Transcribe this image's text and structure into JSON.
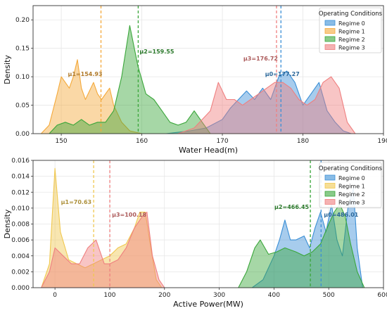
{
  "chart_data": [
    {
      "type": "area",
      "subtype": "kde-density",
      "xlabel": "Water Head(m)",
      "ylabel": "Density",
      "xlim": [
        146.5,
        190
      ],
      "ylim": [
        0,
        0.225
      ],
      "xticks": [
        150,
        160,
        170,
        180,
        190
      ],
      "yticks": [
        0.0,
        0.05,
        0.1,
        0.15,
        0.2
      ],
      "ytick_labels": [
        "0.00",
        "0.05",
        "0.10",
        "0.15",
        "0.20"
      ],
      "grid": true,
      "legend": {
        "title": "Operating Conditions",
        "position": "top-right"
      },
      "series": [
        {
          "name": "Regime 0",
          "color": "#3b8fd6",
          "mean": 177.27,
          "mean_label": "μ0=177.27",
          "x": [
            163,
            166,
            168,
            170,
            171,
            172,
            173,
            174,
            175,
            176,
            177,
            178,
            179,
            180,
            181,
            182,
            183,
            184,
            185,
            186
          ],
          "y": [
            0,
            0.005,
            0.01,
            0.025,
            0.045,
            0.06,
            0.075,
            0.06,
            0.08,
            0.06,
            0.1,
            0.11,
            0.09,
            0.05,
            0.07,
            0.09,
            0.04,
            0.02,
            0.005,
            0
          ]
        },
        {
          "name": "Regime 1",
          "color": "#f4a93a",
          "mean": 154.93,
          "mean_label": "μ1=154.93",
          "x": [
            147.5,
            148.5,
            149.5,
            150,
            151,
            151.5,
            152,
            152.5,
            153,
            154,
            154.5,
            155,
            156,
            156.5,
            157.5,
            158.5,
            160
          ],
          "y": [
            0,
            0.015,
            0.07,
            0.1,
            0.08,
            0.1,
            0.13,
            0.08,
            0.06,
            0.09,
            0.07,
            0.06,
            0.08,
            0.05,
            0.02,
            0.005,
            0
          ]
        },
        {
          "name": "Regime 2",
          "color": "#3aa63a",
          "mean": 159.55,
          "mean_label": "μ2=159.55",
          "x": [
            148.5,
            149.5,
            150.5,
            151.5,
            152.5,
            153.5,
            154.5,
            155.5,
            156.5,
            157.5,
            158.5,
            159.5,
            160.5,
            161.5,
            162.5,
            163.5,
            164.5,
            165.5,
            166.5,
            167.5,
            168.5
          ],
          "y": [
            0,
            0.015,
            0.02,
            0.015,
            0.025,
            0.015,
            0.02,
            0.02,
            0.04,
            0.1,
            0.19,
            0.12,
            0.07,
            0.06,
            0.04,
            0.02,
            0.015,
            0.02,
            0.04,
            0.02,
            0
          ]
        },
        {
          "name": "Regime 3",
          "color": "#ef7f7f",
          "mean": 176.72,
          "mean_label": "μ3=176.72",
          "x": [
            164.5,
            166.5,
            168.5,
            169.5,
            170.5,
            171.5,
            172.5,
            173.5,
            174.5,
            175.5,
            176.5,
            177.5,
            178.5,
            179.5,
            180.5,
            181.5,
            182.5,
            183.5,
            184.5,
            185.5,
            186.5
          ],
          "y": [
            0,
            0.01,
            0.04,
            0.09,
            0.06,
            0.06,
            0.05,
            0.06,
            0.07,
            0.08,
            0.09,
            0.09,
            0.08,
            0.06,
            0.05,
            0.06,
            0.09,
            0.1,
            0.08,
            0.02,
            0
          ]
        }
      ]
    },
    {
      "type": "area",
      "subtype": "kde-density",
      "xlabel": "Active Power(MW)",
      "ylabel": "Density",
      "xlim": [
        -40,
        600
      ],
      "ylim": [
        0,
        0.016
      ],
      "xticks": [
        0,
        100,
        200,
        300,
        400,
        500,
        600
      ],
      "yticks": [
        0.0,
        0.002,
        0.004,
        0.006,
        0.008,
        0.01,
        0.012,
        0.014,
        0.016
      ],
      "ytick_labels": [
        "0.000",
        "0.002",
        "0.004",
        "0.006",
        "0.008",
        "0.010",
        "0.012",
        "0.014",
        "0.016"
      ],
      "grid": true,
      "legend": {
        "title": "Operating Conditions",
        "position": "top-right"
      },
      "series": [
        {
          "name": "Regime 0",
          "color": "#3b8fd6",
          "mean": 486.01,
          "mean_label": "μ0=486.01",
          "x": [
            360,
            380,
            400,
            410,
            420,
            430,
            440,
            455,
            465,
            475,
            485,
            495,
            505,
            515,
            525,
            535,
            545,
            552,
            562
          ],
          "y": [
            0,
            0.001,
            0.004,
            0.006,
            0.0085,
            0.006,
            0.006,
            0.0065,
            0.005,
            0.0075,
            0.0095,
            0.007,
            0.0105,
            0.006,
            0.004,
            0.01,
            0.0125,
            0.005,
            0
          ]
        },
        {
          "name": "Regime 1",
          "color": "#f0c850",
          "mean": 70.63,
          "mean_label": "μ1=70.63",
          "x": [
            -25,
            -10,
            0,
            10,
            25,
            40,
            55,
            70,
            85,
            100,
            115,
            130,
            145,
            155,
            165,
            175,
            185,
            195
          ],
          "y": [
            0,
            0.003,
            0.015,
            0.007,
            0.0035,
            0.003,
            0.0025,
            0.003,
            0.0035,
            0.004,
            0.005,
            0.0055,
            0.0075,
            0.0095,
            0.0095,
            0.005,
            0.001,
            0
          ]
        },
        {
          "name": "Regime 2",
          "color": "#3aa63a",
          "mean": 466.45,
          "mean_label": "μ2=466.45",
          "x": [
            335,
            350,
            365,
            375,
            390,
            405,
            420,
            440,
            455,
            470,
            485,
            500,
            510,
            520,
            530,
            540,
            552,
            565
          ],
          "y": [
            0,
            0.002,
            0.005,
            0.006,
            0.0042,
            0.0045,
            0.005,
            0.0045,
            0.004,
            0.0045,
            0.0055,
            0.008,
            0.0095,
            0.0105,
            0.009,
            0.0055,
            0.002,
            0
          ]
        },
        {
          "name": "Regime 3",
          "color": "#ef7f7f",
          "mean": 100.18,
          "mean_label": "μ3=100.18",
          "x": [
            -25,
            -10,
            0,
            15,
            30,
            45,
            60,
            75,
            90,
            100,
            115,
            130,
            145,
            160,
            168,
            178,
            190,
            200
          ],
          "y": [
            0,
            0.002,
            0.005,
            0.004,
            0.003,
            0.003,
            0.005,
            0.006,
            0.003,
            0.003,
            0.0035,
            0.005,
            0.0075,
            0.009,
            0.0095,
            0.004,
            0.001,
            0
          ]
        }
      ]
    }
  ]
}
